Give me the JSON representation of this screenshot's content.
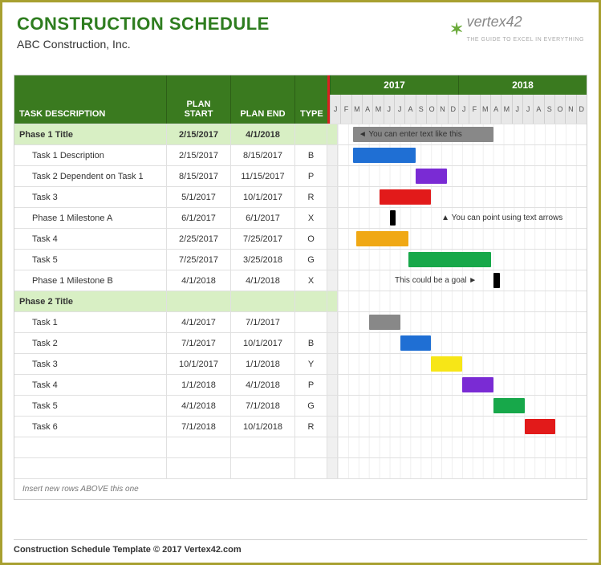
{
  "title": "CONSTRUCTION SCHEDULE",
  "subtitle": "ABC Construction, Inc.",
  "logo": {
    "mark": "✶",
    "text": "vertex42",
    "sub": "THE GUIDE TO EXCEL IN EVERYTHING"
  },
  "columns": {
    "desc": "TASK DESCRIPTION",
    "start": "PLAN START",
    "end": "PLAN END",
    "type": "TYPE"
  },
  "timeline": {
    "years": [
      "2017",
      "2018"
    ],
    "months": [
      "J",
      "F",
      "M",
      "A",
      "M",
      "J",
      "J",
      "A",
      "S",
      "O",
      "N",
      "D",
      "J",
      "F",
      "M",
      "A",
      "M",
      "J",
      "J",
      "A",
      "S",
      "O",
      "N",
      "D"
    ],
    "start_month_index": 0,
    "total_months": 24
  },
  "colors": {
    "header_green": "#3a7a1f",
    "phase_bg": "#d8efc4",
    "grid": "#e0e0e0",
    "red_sep": "#d92020",
    "B": "#1f6fd4",
    "P": "#7a2bd4",
    "R": "#e21a1a",
    "X": "#000000",
    "O": "#f0a814",
    "G": "#17a84a",
    "Y": "#f7e617",
    "gray": "#888888"
  },
  "rows": [
    {
      "kind": "phase",
      "desc": "Phase 1 Title",
      "start": "2/15/2017",
      "end": "4/1/2018",
      "type": "",
      "bar": {
        "from": 1.5,
        "to": 15.0,
        "color": "gray"
      },
      "annot": {
        "text": "◄ You can enter text like this",
        "at": 2.0,
        "color": "#333"
      }
    },
    {
      "kind": "task",
      "desc": "Task 1 Description",
      "start": "2/15/2017",
      "end": "8/15/2017",
      "type": "B",
      "bar": {
        "from": 1.5,
        "to": 7.5,
        "color": "B"
      }
    },
    {
      "kind": "task",
      "desc": "Task 2 Dependent on Task 1",
      "start": "8/15/2017",
      "end": "11/15/2017",
      "type": "P",
      "bar": {
        "from": 7.5,
        "to": 10.5,
        "color": "P"
      }
    },
    {
      "kind": "task",
      "desc": "Task 3",
      "start": "5/1/2017",
      "end": "10/1/2017",
      "type": "R",
      "bar": {
        "from": 4.0,
        "to": 9.0,
        "color": "R"
      }
    },
    {
      "kind": "task",
      "desc": "Phase 1 Milestone A",
      "start": "6/1/2017",
      "end": "6/1/2017",
      "type": "X",
      "bar": {
        "from": 5.0,
        "to": 5.6,
        "color": "X"
      },
      "annot": {
        "text": "▲ You can point using text arrows",
        "at": 10.0
      }
    },
    {
      "kind": "task",
      "desc": "Task 4",
      "start": "2/25/2017",
      "end": "7/25/2017",
      "type": "O",
      "bar": {
        "from": 1.8,
        "to": 6.8,
        "color": "O"
      }
    },
    {
      "kind": "task",
      "desc": "Task 5",
      "start": "7/25/2017",
      "end": "3/25/2018",
      "type": "G",
      "bar": {
        "from": 6.8,
        "to": 14.8,
        "color": "G"
      }
    },
    {
      "kind": "task",
      "desc": "Phase 1 Milestone B",
      "start": "4/1/2018",
      "end": "4/1/2018",
      "type": "X",
      "bar": {
        "from": 15.0,
        "to": 15.6,
        "color": "X"
      },
      "annot": {
        "text": "This could be a goal ►",
        "at": 5.5
      }
    },
    {
      "kind": "phase",
      "desc": "Phase 2 Title",
      "start": "",
      "end": "",
      "type": ""
    },
    {
      "kind": "task",
      "desc": "Task 1",
      "start": "4/1/2017",
      "end": "7/1/2017",
      "type": "",
      "bar": {
        "from": 3.0,
        "to": 6.0,
        "color": "gray"
      }
    },
    {
      "kind": "task",
      "desc": "Task 2",
      "start": "7/1/2017",
      "end": "10/1/2017",
      "type": "B",
      "bar": {
        "from": 6.0,
        "to": 9.0,
        "color": "B"
      }
    },
    {
      "kind": "task",
      "desc": "Task 3",
      "start": "10/1/2017",
      "end": "1/1/2018",
      "type": "Y",
      "bar": {
        "from": 9.0,
        "to": 12.0,
        "color": "Y"
      }
    },
    {
      "kind": "task",
      "desc": "Task 4",
      "start": "1/1/2018",
      "end": "4/1/2018",
      "type": "P",
      "bar": {
        "from": 12.0,
        "to": 15.0,
        "color": "P"
      }
    },
    {
      "kind": "task",
      "desc": "Task 5",
      "start": "4/1/2018",
      "end": "7/1/2018",
      "type": "G",
      "bar": {
        "from": 15.0,
        "to": 18.0,
        "color": "G"
      }
    },
    {
      "kind": "task",
      "desc": "Task 6",
      "start": "7/1/2018",
      "end": "10/1/2018",
      "type": "R",
      "bar": {
        "from": 18.0,
        "to": 21.0,
        "color": "R"
      }
    },
    {
      "kind": "blank"
    },
    {
      "kind": "blank"
    }
  ],
  "footer_note": "Insert new rows ABOVE this one",
  "copyright": "Construction Schedule Template © 2017 Vertex42.com"
}
